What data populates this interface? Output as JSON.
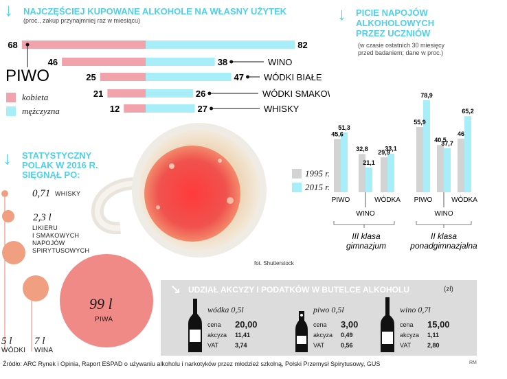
{
  "colors": {
    "cyan": "#4fd0e8",
    "kobieta": "#f0a3ab",
    "mezczyzna": "#a8eef8",
    "gray1995": "#d3d3d3",
    "salmon": "#f0826e",
    "panel": "#dcdcdc"
  },
  "left_chart": {
    "title": "NAJCZĘŚCIEJ KUPOWANE ALKOHOLE NA WŁASNY UŻYTEK",
    "subtitle": "(proc., zakup przynajmniej raz w miesiącu)",
    "legend": {
      "kobieta": "kobieta",
      "mezczyzna": "mężczyzna"
    }
  },
  "chart_data": [
    {
      "type": "bar",
      "orientation": "diverging-horizontal",
      "title": "NAJCZĘŚCIEJ KUPOWANE ALKOHOLE NA WŁASNY UŻYTEK",
      "subtitle": "(proc., zakup przynajmniej raz w miesiącu)",
      "categories": [
        "PIWO",
        "WINO",
        "WÓDKI BIAŁE",
        "WÓDKI SMAKOWE",
        "WHISKY"
      ],
      "series": [
        {
          "name": "kobieta",
          "values": [
            68,
            46,
            25,
            21,
            12
          ]
        },
        {
          "name": "mężczyzna",
          "values": [
            82,
            38,
            47,
            26,
            27
          ]
        }
      ],
      "unit": "%"
    },
    {
      "type": "bar",
      "title": "PICIE NAPOJÓW ALKOHOLOWYCH PRZEZ UCZNIÓW",
      "subtitle": "(w czasie ostatnich 30 miesięcy przed badaniem; dane w proc.)",
      "groups": [
        "III klasa gimnazjum",
        "II klasa ponadgimnazjalna"
      ],
      "categories": [
        "PIWO",
        "WINO",
        "WÓDKA"
      ],
      "category_label_rows": [
        [
          "PIWO",
          "WÓDKA"
        ],
        [
          "WINO"
        ]
      ],
      "series": [
        {
          "name": "1995 r.",
          "values": [
            [
              45.6,
              32.8,
              29.9
            ],
            [
              55.9,
              40.5,
              46
            ]
          ]
        },
        {
          "name": "2015 r.",
          "values": [
            [
              51.3,
              21.1,
              33.1
            ],
            [
              78.9,
              37.7,
              65.2
            ]
          ]
        }
      ],
      "value_labels": [
        [
          "45,6",
          "51,3",
          "32,8",
          "21,1",
          "29,9",
          "33,1"
        ],
        [
          "55,9",
          "78,9",
          "40,5",
          "37,7",
          "46",
          "65,2"
        ]
      ],
      "legend": [
        "1995 r.",
        "2015 r."
      ],
      "ylim": [
        0,
        80
      ]
    },
    {
      "type": "bubble",
      "title": "STATYSTYCZNY POLAK W 2016 R. SIĘGNĄŁ PO:",
      "items": [
        {
          "label": "WHISKY",
          "value": 0.71,
          "display": "0,71"
        },
        {
          "label": "LIKIERU I SMAKOWYCH NAPOJÓW SPIRYTUSOWYCH",
          "value": 2.3,
          "display": "2,3 l"
        },
        {
          "label": "WÓDKI",
          "value": 5,
          "display": "5 l"
        },
        {
          "label": "WINA",
          "value": 7,
          "display": "7 l"
        },
        {
          "label": "PIWA",
          "value": 99,
          "display": "99 l"
        }
      ],
      "unit": "l"
    },
    {
      "type": "table",
      "title": "UDZIAŁ AKCYZY I PODATKÓW W BUTELCE ALKOHOLU",
      "unit": "(zł)",
      "items": [
        {
          "name": "wódka 0,5l",
          "cena": "20,00",
          "akcyza": "11,41",
          "vat": "3,74"
        },
        {
          "name": "piwo 0,5l",
          "cena": "3,00",
          "akcyza": "0,49",
          "vat": "0,56"
        },
        {
          "name": "wino 0,7l",
          "cena": "15,00",
          "akcyza": "1,11",
          "vat": "2,80"
        }
      ],
      "row_labels": {
        "cena": "cena",
        "akcyza": "akcyza",
        "vat": "VAT"
      }
    }
  ],
  "students": {
    "title_l1": "PICIE NAPOJÓW",
    "title_l2": "ALKOHOLOWYCH",
    "title_l3": "PRZEZ UCZNIÓW",
    "sub_l1": "(w czasie ostatnich 30 miesięcy",
    "sub_l2": "przed badaniem; dane w proc.)",
    "legend_1995": "1995 r.",
    "legend_2015": "2015 r.",
    "group1_l1": "III klasa",
    "group1_l2": "gimnazjum",
    "group2_l1": "II klasa",
    "group2_l2": "ponadgimnazjalna"
  },
  "stat": {
    "title_l1": "STATYSTYCZNY",
    "title_l2": "POLAK W 2016 R.",
    "title_l3": "SIĘGNĄŁ PO:",
    "likier_l1": "LIKIERU",
    "likier_l2": "I SMAKOWYCH",
    "likier_l3": "NAPOJÓW",
    "likier_l4": "SPIRYTUSOWYCH"
  },
  "tax": {
    "title": "UDZIAŁ AKCYZY I PODATKÓW W BUTELCE ALKOHOLU",
    "unit": "(zł)"
  },
  "photo_credit": "fot. Shutterstock",
  "source": "Źródło: ARC Rynek i Opinia, Raport ESPAD o używaniu alkoholu i narkotyków przez młodzież szkolną, Polski Przemysł Spirytusowy, GUS",
  "author": "RM"
}
